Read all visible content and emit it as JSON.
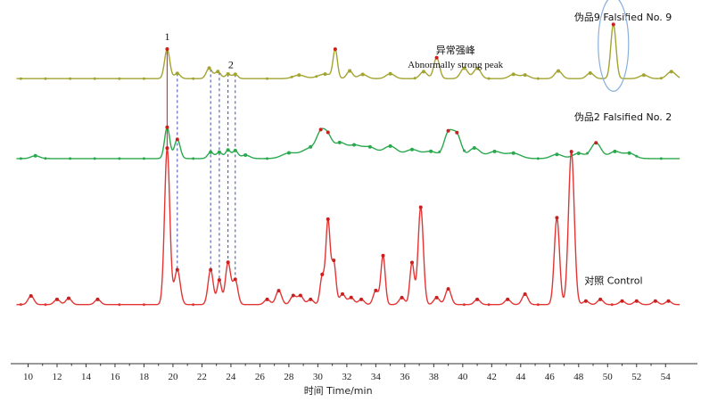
{
  "chart_data": {
    "type": "line",
    "xlabel": "时间 Time/min",
    "xlim": [
      8.8,
      56.2
    ],
    "x_ticks": [
      10,
      12,
      14,
      16,
      18,
      20,
      22,
      24,
      26,
      28,
      30,
      32,
      34,
      36,
      38,
      40,
      42,
      44,
      46,
      48,
      50,
      52,
      54
    ],
    "ylim": [
      0,
      100
    ],
    "grid": false,
    "series": [
      {
        "name": "伪品9 Falsified No. 9",
        "color": "#a3a330",
        "baseline": 82,
        "peaks": [
          [
            19.6,
            8.5,
            0.18
          ],
          [
            20.3,
            1.5,
            0.2
          ],
          [
            22.5,
            3,
            0.2
          ],
          [
            23.1,
            2,
            0.2
          ],
          [
            23.8,
            1.3,
            0.18
          ],
          [
            24.3,
            1.2,
            0.18
          ],
          [
            28.7,
            1,
            0.4
          ],
          [
            30.5,
            1.3,
            0.5
          ],
          [
            31.2,
            8,
            0.15
          ],
          [
            32.2,
            2.2,
            0.2
          ],
          [
            33.1,
            1.2,
            0.3
          ],
          [
            35.0,
            1.4,
            0.3
          ],
          [
            37.3,
            2,
            0.25
          ],
          [
            38.2,
            6,
            0.2
          ],
          [
            40.1,
            3,
            0.25
          ],
          [
            41.0,
            3,
            0.25
          ],
          [
            43.5,
            1.2,
            0.3
          ],
          [
            44.3,
            1,
            0.3
          ],
          [
            46.6,
            2.2,
            0.25
          ],
          [
            48.8,
            1.6,
            0.25
          ],
          [
            50.4,
            15.6,
            0.18
          ],
          [
            52.5,
            1,
            0.3
          ],
          [
            54.4,
            2,
            0.3
          ]
        ],
        "label": "伪品9 Falsified No. 9"
      },
      {
        "name": "伪品2 Falsified No. 2",
        "color": "#2aa84e",
        "baseline": 59,
        "peaks": [
          [
            10.5,
            0.8,
            0.3
          ],
          [
            19.6,
            9,
            0.18
          ],
          [
            20.3,
            5.5,
            0.2
          ],
          [
            22.6,
            1.8,
            0.2
          ],
          [
            23.2,
            1.8,
            0.2
          ],
          [
            23.8,
            2.4,
            0.18
          ],
          [
            24.3,
            2.2,
            0.18
          ],
          [
            25.0,
            1,
            0.3
          ],
          [
            28.0,
            1.5,
            0.5
          ],
          [
            29.5,
            3,
            0.6
          ],
          [
            30.2,
            5.5,
            0.3
          ],
          [
            30.7,
            5.2,
            0.3
          ],
          [
            31.5,
            4,
            0.4
          ],
          [
            32.5,
            3.5,
            0.5
          ],
          [
            33.6,
            3,
            0.5
          ],
          [
            35.0,
            3.5,
            0.5
          ],
          [
            36.5,
            2.5,
            0.5
          ],
          [
            37.8,
            2,
            0.5
          ],
          [
            39.0,
            7,
            0.3
          ],
          [
            39.6,
            6.5,
            0.3
          ],
          [
            40.8,
            3,
            0.4
          ],
          [
            42.2,
            2,
            0.5
          ],
          [
            43.5,
            1.5,
            0.5
          ],
          [
            46.5,
            1.2,
            0.4
          ],
          [
            48.0,
            1.5,
            0.4
          ],
          [
            49.2,
            4.5,
            0.35
          ],
          [
            50.5,
            2,
            0.4
          ],
          [
            51.5,
            1.5,
            0.4
          ]
        ],
        "label": "伪品2 Falsified No. 2"
      },
      {
        "name": "对照 Control",
        "color": "#e33535",
        "baseline": 17,
        "peaks": [
          [
            10.2,
            2.5,
            0.2
          ],
          [
            12.0,
            1.5,
            0.2
          ],
          [
            12.8,
            1.8,
            0.2
          ],
          [
            14.8,
            1.5,
            0.2
          ],
          [
            19.6,
            45,
            0.18
          ],
          [
            20.3,
            10,
            0.2
          ],
          [
            22.6,
            10,
            0.18
          ],
          [
            23.2,
            7,
            0.15
          ],
          [
            23.8,
            12,
            0.18
          ],
          [
            24.3,
            7,
            0.18
          ],
          [
            26.5,
            1.5,
            0.2
          ],
          [
            27.3,
            4,
            0.2
          ],
          [
            28.3,
            2.5,
            0.2
          ],
          [
            28.8,
            2.5,
            0.2
          ],
          [
            29.5,
            1.5,
            0.2
          ],
          [
            30.3,
            8,
            0.15
          ],
          [
            30.7,
            24,
            0.15
          ],
          [
            31.1,
            12,
            0.15
          ],
          [
            31.7,
            3,
            0.2
          ],
          [
            32.3,
            2,
            0.2
          ],
          [
            33.0,
            1.5,
            0.2
          ],
          [
            34.0,
            4,
            0.18
          ],
          [
            34.5,
            14,
            0.15
          ],
          [
            35.8,
            2,
            0.2
          ],
          [
            36.5,
            12,
            0.15
          ],
          [
            37.1,
            28,
            0.18
          ],
          [
            38.2,
            2,
            0.2
          ],
          [
            39.0,
            4.5,
            0.2
          ],
          [
            41.0,
            1.5,
            0.2
          ],
          [
            43.1,
            1.5,
            0.2
          ],
          [
            44.3,
            3,
            0.2
          ],
          [
            46.5,
            25,
            0.18
          ],
          [
            47.5,
            44,
            0.2
          ],
          [
            48.5,
            1,
            0.2
          ],
          [
            49.5,
            1.5,
            0.2
          ],
          [
            51.0,
            1,
            0.2
          ],
          [
            52.0,
            1,
            0.2
          ],
          [
            53.3,
            1,
            0.2
          ],
          [
            54.2,
            1,
            0.2
          ]
        ],
        "label": "对照 Control"
      }
    ],
    "peak_labels": [
      {
        "text": "1",
        "x": 19.6
      },
      {
        "text": "2",
        "x": 24.0
      }
    ],
    "dashed_links": [
      20.3,
      22.6,
      23.2,
      23.8,
      24.3
    ],
    "annotation": {
      "cn": "异常强峰",
      "en": "Abnormally strong peak",
      "x": 50.4
    }
  }
}
